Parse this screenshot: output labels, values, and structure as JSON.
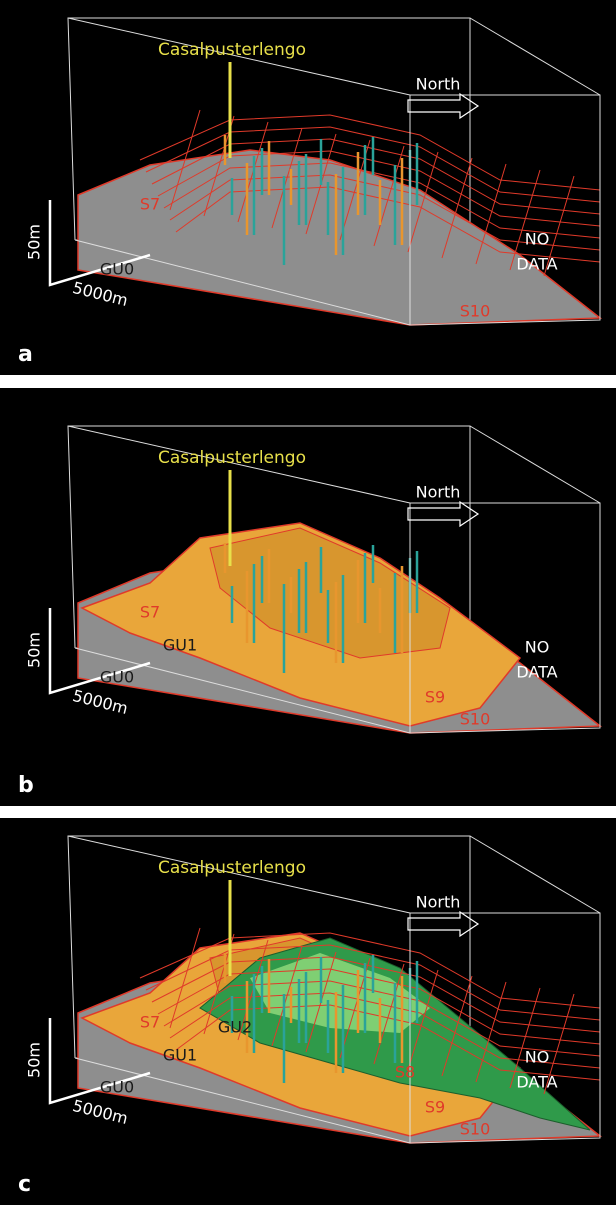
{
  "panels": [
    {
      "letter": "a",
      "place": "Casalpusterlengo",
      "north": "North",
      "no_data": [
        "NO",
        "DATA"
      ],
      "scale_v": "50m",
      "scale_h": "5000m",
      "units": [
        "GU0"
      ],
      "surfaces": [
        "S7",
        "S10"
      ]
    },
    {
      "letter": "b",
      "place": "Casalpusterlengo",
      "north": "North",
      "no_data": [
        "NO",
        "DATA"
      ],
      "scale_v": "50m",
      "scale_h": "5000m",
      "units": [
        "GU0",
        "GU1"
      ],
      "surfaces": [
        "S7",
        "S9",
        "S10"
      ]
    },
    {
      "letter": "c",
      "place": "Casalpusterlengo",
      "north": "North",
      "no_data": [
        "NO",
        "DATA"
      ],
      "scale_v": "50m",
      "scale_h": "5000m",
      "units": [
        "GU0",
        "GU1",
        "GU2"
      ],
      "surfaces": [
        "S7",
        "S8",
        "S9",
        "S10"
      ]
    }
  ]
}
